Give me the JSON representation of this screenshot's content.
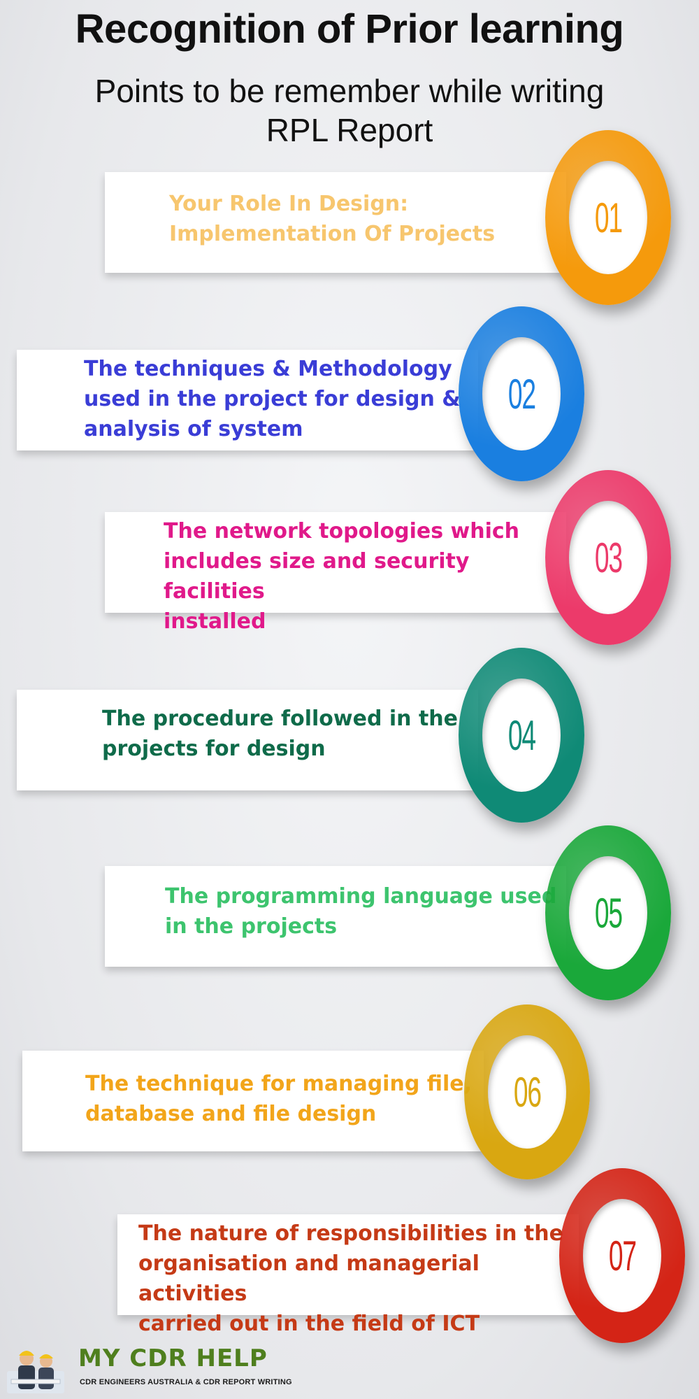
{
  "header": {
    "title": "Recognition of Prior learning",
    "subtitle": "Points to be remember while writing\nRPL Report"
  },
  "items": [
    {
      "number": "01",
      "text": "Your Role In Design:\nImplementation Of Projects",
      "text_color": "#f7c66e",
      "ring_color": "#f59a0c"
    },
    {
      "number": "02",
      "text": "The techniques & Methodology\nused in the project for design &\nanalysis of system",
      "text_color": "#3a3dd6",
      "ring_color": "#1a7fe0"
    },
    {
      "number": "03",
      "text": "The network topologies which\nincludes size and security facilities\ninstalled",
      "text_color": "#e0198a",
      "ring_color": "#ec3a6a"
    },
    {
      "number": "04",
      "text": "The procedure followed in the\nprojects for design",
      "text_color": "#0f6b4a",
      "ring_color": "#0f8a76"
    },
    {
      "number": "05",
      "text": "The programming language used\nin the projects",
      "text_color": "#3dc46e",
      "ring_color": "#1aa83a"
    },
    {
      "number": "06",
      "text": "The technique for managing file,\ndatabase and file design",
      "text_color": "#f2a51a",
      "ring_color": "#d9a711"
    },
    {
      "number": "07",
      "text": "The nature of responsibilities in the\norganisation and managerial activities\ncarried out in the field of ICT",
      "text_color": "#c53a16",
      "ring_color": "#d42416"
    }
  ],
  "logo": {
    "name": "MY CDR HELP",
    "tagline": "CDR ENGINEERS AUSTRALIA & CDR REPORT WRITING"
  }
}
